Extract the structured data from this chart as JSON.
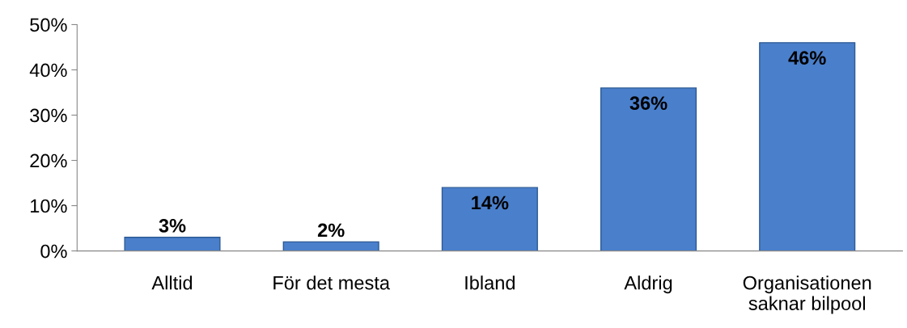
{
  "chart_data": {
    "type": "bar",
    "categories": [
      "Alltid",
      "För det mesta",
      "Ibland",
      "Aldrig",
      "Organisationen\nsaknar bilpool"
    ],
    "values": [
      3,
      2,
      14,
      36,
      46
    ],
    "value_labels": [
      "3%",
      "2%",
      "14%",
      "36%",
      "46%"
    ],
    "color": "#4a7fcb",
    "ylim": [
      0,
      50
    ],
    "yticks": [
      {
        "value": 0,
        "label": "0%"
      },
      {
        "value": 10,
        "label": "10%"
      },
      {
        "value": 20,
        "label": "20%"
      },
      {
        "value": 30,
        "label": "30%"
      },
      {
        "value": 40,
        "label": "40%"
      },
      {
        "value": 50,
        "label": "50%"
      }
    ],
    "grid": false,
    "legend": false
  }
}
